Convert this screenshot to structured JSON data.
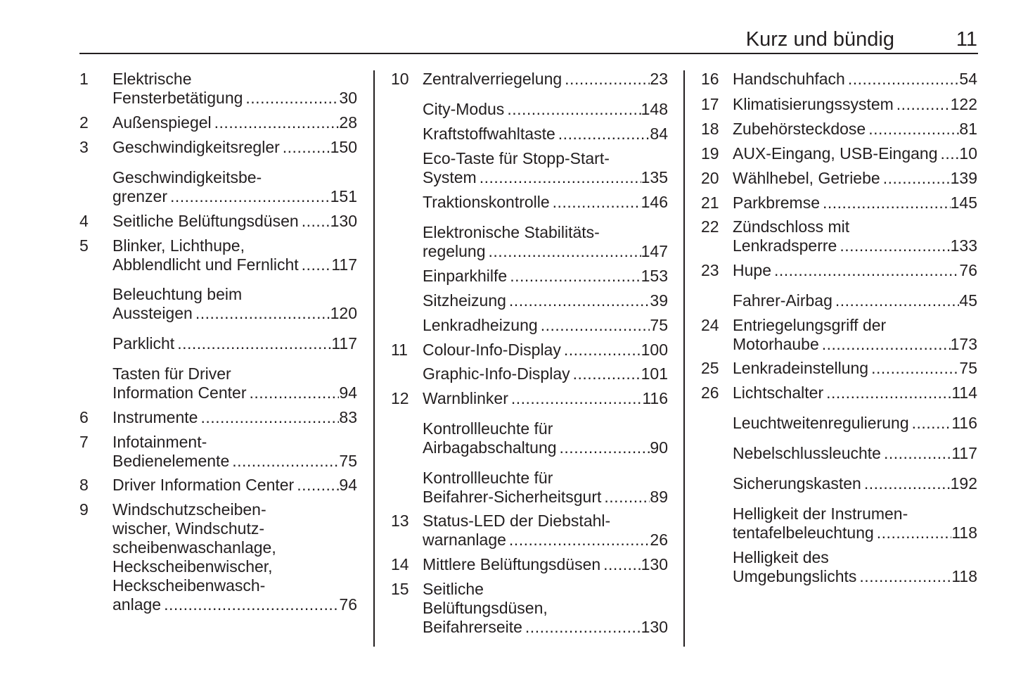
{
  "header": {
    "title": "Kurz und bündig",
    "page_number": "11"
  },
  "columns": [
    [
      {
        "num": "1",
        "lines": [
          "Elektrische",
          "Fensterbetätigung"
        ],
        "page": "30"
      },
      {
        "num": "2",
        "lines": [
          "Außenspiegel"
        ],
        "page": "28"
      },
      {
        "num": "3",
        "lines": [
          "Geschwindigkeitsregler"
        ],
        "page": "150"
      },
      {
        "num": "",
        "lines": [
          "Geschwindigkeitsbe-",
          "grenzer"
        ],
        "page": "151"
      },
      {
        "num": "4",
        "lines": [
          "Seitliche Belüftungsdüsen"
        ],
        "page": "130"
      },
      {
        "num": "5",
        "lines": [
          "Blinker, Lichthupe,",
          "Abblendlicht und Fernlicht"
        ],
        "page": "117"
      },
      {
        "num": "",
        "lines": [
          "Beleuchtung beim",
          "Aussteigen"
        ],
        "page": "120"
      },
      {
        "num": "",
        "lines": [
          "Parklicht"
        ],
        "page": "117"
      },
      {
        "num": "",
        "lines": [
          "Tasten für Driver",
          "Information Center"
        ],
        "page": "94"
      },
      {
        "num": "6",
        "lines": [
          "Instrumente"
        ],
        "page": "83"
      },
      {
        "num": "7",
        "lines": [
          "Infotainment-",
          "Bedienelemente"
        ],
        "page": "75"
      },
      {
        "num": "8",
        "lines": [
          "Driver Information Center"
        ],
        "page": "94"
      },
      {
        "num": "9",
        "lines": [
          "Windschutzscheiben-",
          "wischer, Windschutz-",
          "scheibenwaschanlage,",
          "Heckscheibenwischer,",
          "Heckscheibenwasch-",
          "anlage"
        ],
        "page": "76"
      }
    ],
    [
      {
        "num": "10",
        "lines": [
          "Zentralverriegelung"
        ],
        "page": "23"
      },
      {
        "num": "",
        "lines": [
          "City-Modus"
        ],
        "page": "148"
      },
      {
        "num": "",
        "lines": [
          "Kraftstoffwahltaste"
        ],
        "page": "84"
      },
      {
        "num": "",
        "lines": [
          "Eco-Taste für Stopp-Start-",
          "System"
        ],
        "page": "135"
      },
      {
        "num": "",
        "lines": [
          "Traktionskontrolle"
        ],
        "page": "146"
      },
      {
        "num": "",
        "lines": [
          "Elektronische Stabilitäts-",
          "regelung"
        ],
        "page": "147"
      },
      {
        "num": "",
        "lines": [
          "Einparkhilfe"
        ],
        "page": "153"
      },
      {
        "num": "",
        "lines": [
          "Sitzheizung"
        ],
        "page": "39"
      },
      {
        "num": "",
        "lines": [
          "Lenkradheizung"
        ],
        "page": "75"
      },
      {
        "num": "11",
        "lines": [
          "Colour-Info-Display"
        ],
        "page": "100"
      },
      {
        "num": "",
        "lines": [
          "Graphic-Info-Display"
        ],
        "page": "101"
      },
      {
        "num": "12",
        "lines": [
          "Warnblinker"
        ],
        "page": "116"
      },
      {
        "num": "",
        "lines": [
          "Kontrollleuchte für",
          "Airbagabschaltung"
        ],
        "page": "90"
      },
      {
        "num": "",
        "lines": [
          "Kontrollleuchte für",
          "Beifahrer-Sicherheitsgurt"
        ],
        "page": "89"
      },
      {
        "num": "13",
        "lines": [
          "Status-LED der Diebstahl-",
          "warnanlage"
        ],
        "page": "26"
      },
      {
        "num": "14",
        "lines": [
          "Mittlere Belüftungsdüsen"
        ],
        "page": "130"
      },
      {
        "num": "15",
        "lines": [
          "Seitliche",
          "Belüftungsdüsen,",
          "Beifahrerseite"
        ],
        "page": "130"
      }
    ],
    [
      {
        "num": "16",
        "lines": [
          "Handschuhfach"
        ],
        "page": "54"
      },
      {
        "num": "17",
        "lines": [
          "Klimatisierungssystem"
        ],
        "page": "122"
      },
      {
        "num": "18",
        "lines": [
          "Zubehörsteckdose"
        ],
        "page": "81"
      },
      {
        "num": "19",
        "lines": [
          "AUX-Eingang, USB-Eingang"
        ],
        "page": "10"
      },
      {
        "num": "20",
        "lines": [
          "Wählhebel, Getriebe"
        ],
        "page": "139"
      },
      {
        "num": "21",
        "lines": [
          "Parkbremse"
        ],
        "page": "145"
      },
      {
        "num": "22",
        "lines": [
          "Zündschloss mit",
          "Lenkradsperre"
        ],
        "page": "133"
      },
      {
        "num": "23",
        "lines": [
          "Hupe"
        ],
        "page": "76"
      },
      {
        "num": "",
        "lines": [
          "Fahrer-Airbag"
        ],
        "page": "45"
      },
      {
        "num": "24",
        "lines": [
          "Entriegelungsgriff der",
          "Motorhaube"
        ],
        "page": "173"
      },
      {
        "num": "25",
        "lines": [
          "Lenkradeinstellung"
        ],
        "page": "75"
      },
      {
        "num": "26",
        "lines": [
          "Lichtschalter"
        ],
        "page": "114"
      },
      {
        "num": "",
        "lines": [
          "Leuchtweitenregulierung"
        ],
        "page": "116"
      },
      {
        "num": "",
        "lines": [
          "Nebelschlussleuchte"
        ],
        "page": "117"
      },
      {
        "num": "",
        "lines": [
          "Sicherungskasten"
        ],
        "page": "192"
      },
      {
        "num": "",
        "lines": [
          "Helligkeit der Instrumen-",
          "tentafelbeleuchtung"
        ],
        "page": "118"
      },
      {
        "num": "",
        "lines": [
          "Helligkeit des",
          "Umgebungslichts"
        ],
        "page": "118"
      }
    ]
  ]
}
